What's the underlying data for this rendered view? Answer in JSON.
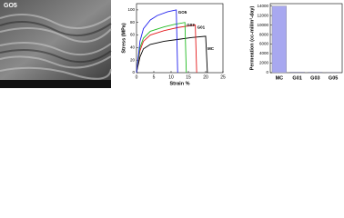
{
  "image_label": "GO5",
  "chart_data": [
    {
      "type": "line",
      "y_label": "Stress (MPa)",
      "x_label": "Strain %",
      "xlim": [
        0,
        25
      ],
      "xticks": [
        0,
        5,
        10,
        15,
        20,
        25
      ],
      "ylim": [
        0,
        110
      ],
      "yticks": [
        0,
        20,
        40,
        60,
        80,
        100
      ],
      "series": [
        {
          "name": "MC",
          "color": "#000000",
          "x": [
            0,
            1,
            2,
            4,
            8,
            12,
            16,
            20,
            20.5
          ],
          "values": [
            0,
            25,
            38,
            45,
            50,
            53,
            56,
            58,
            0
          ]
        },
        {
          "name": "G01",
          "color": "#e41a1c",
          "x": [
            0,
            1,
            2,
            4,
            8,
            12,
            17,
            17.4
          ],
          "values": [
            0,
            35,
            50,
            60,
            67,
            72,
            76,
            0
          ]
        },
        {
          "name": "G03",
          "color": "#22bb22",
          "x": [
            0,
            1,
            2,
            4,
            8,
            11,
            14,
            14.4
          ],
          "values": [
            0,
            40,
            55,
            66,
            73,
            77,
            80,
            0
          ]
        },
        {
          "name": "GO5",
          "color": "#2222ee",
          "x": [
            0,
            1,
            2,
            4,
            6,
            9,
            11.5,
            11.9
          ],
          "values": [
            0,
            50,
            70,
            84,
            91,
            97,
            100,
            0
          ]
        }
      ]
    },
    {
      "type": "bar",
      "y_label": "Permeation (cc-mil/m²-day)",
      "categories": [
        "MC",
        "G01",
        "G03",
        "G05"
      ],
      "values": [
        14000,
        150,
        120,
        100
      ],
      "color": "#a8a8f0",
      "ylim": [
        0,
        14500
      ],
      "yticks": [
        0,
        2000,
        4000,
        6000,
        8000,
        10000,
        12000,
        14000
      ]
    }
  ]
}
